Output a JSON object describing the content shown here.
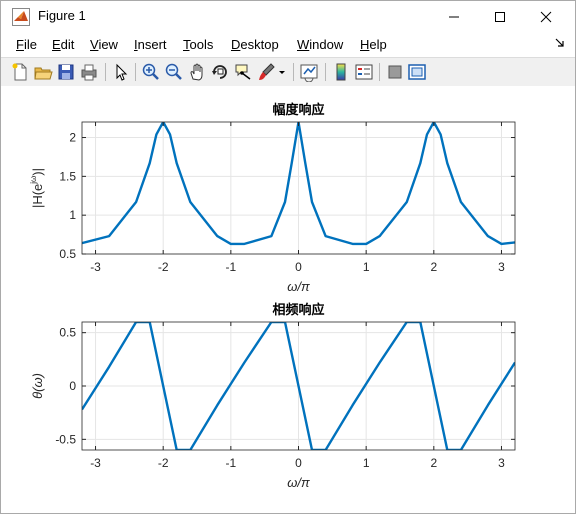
{
  "window": {
    "title": "Figure 1"
  },
  "menus": [
    "File",
    "Edit",
    "View",
    "Insert",
    "Tools",
    "Desktop",
    "Window",
    "Help"
  ],
  "menu_mnemonics": [
    "F",
    "E",
    "V",
    "I",
    "T",
    "D",
    "W",
    "H"
  ],
  "toolbar_icons": [
    "new-figure-icon",
    "open-file-icon",
    "save-icon",
    "print-icon",
    "edit-plot-arrow-icon",
    "zoom-in-icon",
    "zoom-out-icon",
    "pan-hand-icon",
    "rotate-3d-icon",
    "data-cursor-icon",
    "brush-icon",
    "brush-dropdown-icon",
    "link-plot-icon",
    "colorbar-icon",
    "legend-icon",
    "hide-plot-tools-icon",
    "show-plot-tools-icon"
  ],
  "colors": {
    "line": "#0072bd",
    "grid": "#e5e5e5",
    "axis": "#262626"
  },
  "chart_data": [
    {
      "type": "line",
      "title": "幅度响应",
      "xlabel": "ω/π",
      "ylabel": "|H(e^jω)|",
      "ylabel_base": "|H(e",
      "ylabel_sup": "jω",
      "ylabel_end": ")|",
      "xlim": [
        -3.2,
        3.2
      ],
      "ylim": [
        0.5,
        2.2
      ],
      "xticks": [
        "-3",
        "-2",
        "-1",
        "0",
        "1",
        "2",
        "3"
      ],
      "yticks": [
        "0.5",
        "1",
        "1.5",
        "2"
      ],
      "grid": true,
      "series": [
        {
          "x": [
            -3.2,
            -2.8,
            -2.4,
            -2.2,
            -2.1,
            -2.0,
            -1.9,
            -1.8,
            -1.6,
            -1.2,
            -1.0,
            -0.8,
            -0.4,
            -0.2,
            -0.1,
            0.0,
            0.1,
            0.2,
            0.4,
            0.8,
            1.0,
            1.2,
            1.6,
            1.8,
            1.9,
            2.0,
            2.1,
            2.2,
            2.4,
            2.8,
            3.0,
            3.2
          ],
          "y": [
            0.64,
            0.73,
            1.17,
            1.67,
            2.04,
            2.2,
            2.04,
            1.67,
            1.17,
            0.73,
            0.63,
            0.63,
            0.73,
            1.17,
            1.67,
            2.2,
            1.67,
            1.17,
            0.73,
            0.63,
            0.63,
            0.73,
            1.17,
            1.67,
            2.04,
            2.2,
            2.04,
            1.67,
            1.17,
            0.73,
            0.63,
            0.65
          ]
        }
      ]
    },
    {
      "type": "line",
      "title": "相频响应",
      "xlabel": "ω/π",
      "ylabel": "θ(ω)",
      "xlim": [
        -3.2,
        3.2
      ],
      "ylim": [
        -0.6,
        0.6
      ],
      "xticks": [
        "-3",
        "-2",
        "-1",
        "0",
        "1",
        "2",
        "3"
      ],
      "yticks": [
        "-0.5",
        "0",
        "0.5"
      ],
      "grid": true,
      "series": [
        {
          "x": [
            -3.2,
            -2.8,
            -2.4,
            -2.2,
            -2.0,
            -1.8,
            -1.6,
            -1.2,
            -0.8,
            -0.4,
            -0.2,
            0.0,
            0.2,
            0.4,
            0.8,
            1.2,
            1.6,
            1.8,
            2.0,
            2.2,
            2.4,
            2.8,
            3.2
          ],
          "y": [
            -0.22,
            0.18,
            0.6,
            0.6,
            0.0,
            -0.6,
            -0.6,
            -0.18,
            0.22,
            0.6,
            0.6,
            0.0,
            -0.6,
            -0.6,
            -0.18,
            0.22,
            0.6,
            0.6,
            0.0,
            -0.6,
            -0.6,
            -0.18,
            0.22
          ]
        }
      ]
    }
  ]
}
